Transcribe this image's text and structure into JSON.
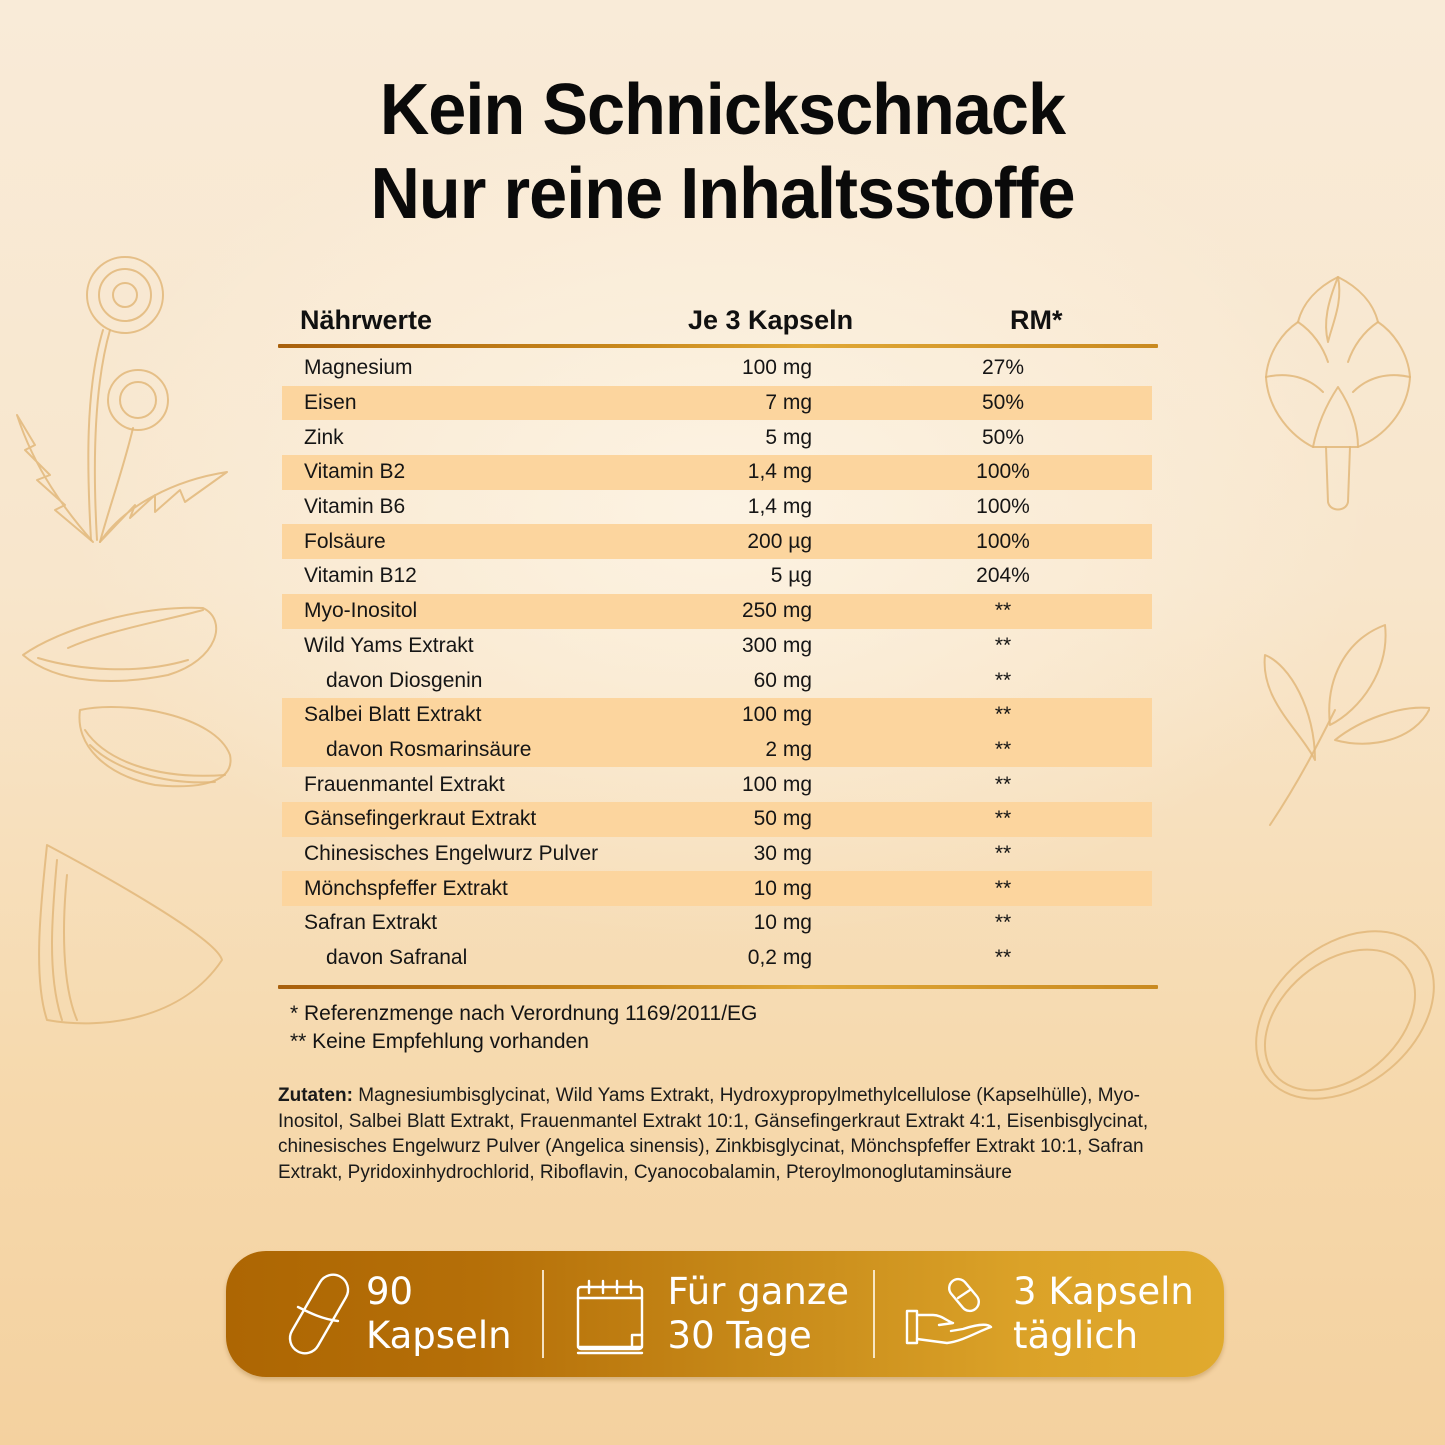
{
  "headline": {
    "line1": "Kein Schnickschnack",
    "line2": "Nur reine Inhaltsstoffe"
  },
  "table": {
    "headers": {
      "name": "Nährwerte",
      "amount": "Je 3 Kapseln",
      "rm": "RM*"
    },
    "rows": [
      {
        "name": "Magnesium",
        "amount": "100 mg",
        "rm": "27%",
        "sub": false,
        "highlight": false
      },
      {
        "name": "Eisen",
        "amount": "7 mg",
        "rm": "50%",
        "sub": false,
        "highlight": true
      },
      {
        "name": "Zink",
        "amount": "5 mg",
        "rm": "50%",
        "sub": false,
        "highlight": false
      },
      {
        "name": "Vitamin B2",
        "amount": "1,4 mg",
        "rm": "100%",
        "sub": false,
        "highlight": true
      },
      {
        "name": "Vitamin B6",
        "amount": "1,4 mg",
        "rm": "100%",
        "sub": false,
        "highlight": false
      },
      {
        "name": "Folsäure",
        "amount": "200 µg",
        "rm": "100%",
        "sub": false,
        "highlight": true
      },
      {
        "name": "Vitamin B12",
        "amount": "5 µg",
        "rm": "204%",
        "sub": false,
        "highlight": false
      },
      {
        "name": "Myo-Inositol",
        "amount": "250 mg",
        "rm": "**",
        "sub": false,
        "highlight": true
      },
      {
        "name": "Wild Yams Extrakt",
        "amount": "300 mg",
        "rm": "**",
        "sub": false,
        "highlight": false
      },
      {
        "name": "davon Diosgenin",
        "amount": "60 mg",
        "rm": "**",
        "sub": true,
        "highlight": false
      },
      {
        "name": "Salbei Blatt Extrakt",
        "amount": "100 mg",
        "rm": "**",
        "sub": false,
        "highlight": true
      },
      {
        "name": "davon Rosmarinsäure",
        "amount": "2 mg",
        "rm": "**",
        "sub": true,
        "highlight": true
      },
      {
        "name": "Frauenmantel Extrakt",
        "amount": "100 mg",
        "rm": "**",
        "sub": false,
        "highlight": false
      },
      {
        "name": "Gänsefingerkraut Extrakt",
        "amount": "50 mg",
        "rm": "**",
        "sub": false,
        "highlight": true
      },
      {
        "name": "Chinesisches Engelwurz Pulver",
        "amount": "30 mg",
        "rm": "**",
        "sub": false,
        "highlight": false
      },
      {
        "name": "Mönchspfeffer Extrakt",
        "amount": "10 mg",
        "rm": "**",
        "sub": false,
        "highlight": true
      },
      {
        "name": "Safran Extrakt",
        "amount": "10 mg",
        "rm": "**",
        "sub": false,
        "highlight": false
      },
      {
        "name": "davon Safranal",
        "amount": "0,2 mg",
        "rm": "**",
        "sub": true,
        "highlight": false
      }
    ]
  },
  "footnotes": {
    "single": "* Referenzmenge nach Verordnung 1169/2011/EG",
    "double": "** Keine Empfehlung vorhanden"
  },
  "ingredients": {
    "label": "Zutaten:",
    "text": " Magnesiumbisglycinat, Wild Yams Extrakt, Hydroxypropylmethylcellulose (Kapselhülle), Myo-Inositol, Salbei Blatt Extrakt, Frauenmantel Extrakt 10:1, Gänsefingerkraut Extrakt 4:1, Eisenbisglycinat, chinesisches Engelwurz Pulver (Angelica sinensis), Zinkbisglycinat, Mönchspfeffer Extrakt 10:1, Safran Extrakt, Pyridoxinhydrochlorid, Riboflavin, Cyanocobalamin, Pteroylmonoglutaminsäure"
  },
  "features": [
    {
      "icon": "capsule-icon",
      "line1": "90",
      "line2": "Kapseln"
    },
    {
      "icon": "calendar-icon",
      "line1": "Für ganze",
      "line2": "30 Tage"
    },
    {
      "icon": "hand-capsule-icon",
      "line1": "3 Kapseln",
      "line2": "täglich"
    }
  ],
  "colors": {
    "row_highlight": "#fcd59e",
    "rule_gold": "#c9891c",
    "banner_start": "#ad6603",
    "banner_end": "#e0aa2e",
    "sketch_line": "#e2b77a"
  }
}
